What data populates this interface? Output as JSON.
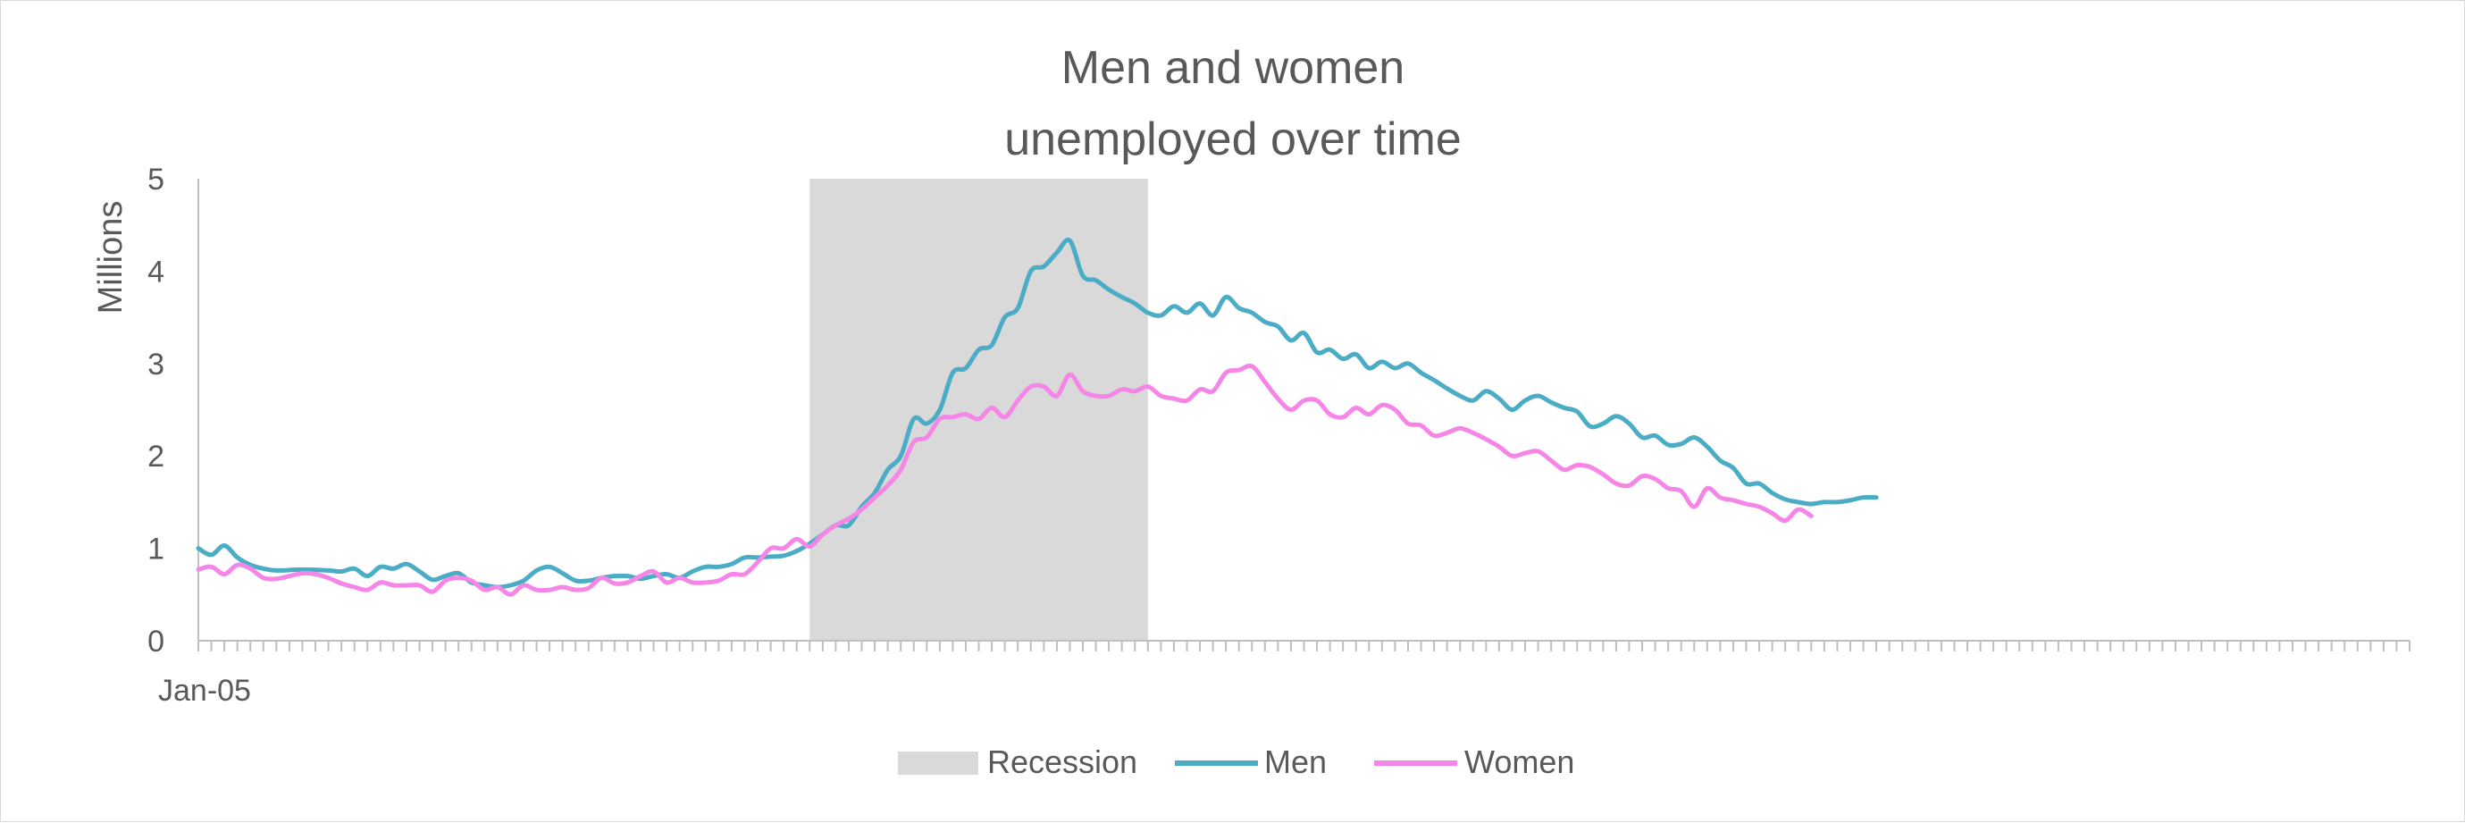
{
  "chart_data": {
    "type": "line",
    "title_lines": [
      "Men and women",
      "unemployed over time"
    ],
    "ylabel": "Millions",
    "ylim": [
      0,
      5
    ],
    "yticks": [
      0,
      1,
      2,
      3,
      4,
      5
    ],
    "x_start_label": "Jan-05",
    "x_range": [
      0,
      170
    ],
    "recession": {
      "name": "Recession",
      "start": 47,
      "end": 73,
      "color": "#d9d9d9"
    },
    "grid": false,
    "legend_position": "bottom",
    "series": [
      {
        "name": "Men",
        "color": "#4bacc6",
        "points": [
          [
            0,
            1.0
          ],
          [
            1,
            0.93
          ],
          [
            2,
            1.03
          ],
          [
            3,
            0.9
          ],
          [
            4,
            0.82
          ],
          [
            5,
            0.78
          ],
          [
            6,
            0.76
          ],
          [
            8,
            0.77
          ],
          [
            10,
            0.76
          ],
          [
            11,
            0.75
          ],
          [
            12,
            0.78
          ],
          [
            13,
            0.7
          ],
          [
            14,
            0.8
          ],
          [
            15,
            0.78
          ],
          [
            16,
            0.83
          ],
          [
            17,
            0.75
          ],
          [
            18,
            0.66
          ],
          [
            19,
            0.7
          ],
          [
            20,
            0.73
          ],
          [
            21,
            0.63
          ],
          [
            22,
            0.6
          ],
          [
            23,
            0.58
          ],
          [
            24,
            0.6
          ],
          [
            25,
            0.65
          ],
          [
            26,
            0.76
          ],
          [
            27,
            0.8
          ],
          [
            28,
            0.73
          ],
          [
            29,
            0.65
          ],
          [
            30,
            0.65
          ],
          [
            31,
            0.68
          ],
          [
            32,
            0.7
          ],
          [
            33,
            0.7
          ],
          [
            34,
            0.67
          ],
          [
            35,
            0.7
          ],
          [
            36,
            0.72
          ],
          [
            37,
            0.68
          ],
          [
            38,
            0.75
          ],
          [
            39,
            0.8
          ],
          [
            40,
            0.8
          ],
          [
            41,
            0.83
          ],
          [
            42,
            0.9
          ],
          [
            43,
            0.9
          ],
          [
            44,
            0.91
          ],
          [
            45,
            0.92
          ],
          [
            46,
            0.97
          ],
          [
            47,
            1.05
          ],
          [
            48,
            1.15
          ],
          [
            49,
            1.25
          ],
          [
            50,
            1.25
          ],
          [
            51,
            1.45
          ],
          [
            52,
            1.6
          ],
          [
            53,
            1.85
          ],
          [
            54,
            2.0
          ],
          [
            55,
            2.4
          ],
          [
            56,
            2.35
          ],
          [
            57,
            2.5
          ],
          [
            58,
            2.9
          ],
          [
            59,
            2.95
          ],
          [
            60,
            3.15
          ],
          [
            61,
            3.2
          ],
          [
            62,
            3.5
          ],
          [
            63,
            3.6
          ],
          [
            64,
            4.0
          ],
          [
            65,
            4.05
          ],
          [
            66,
            4.2
          ],
          [
            67,
            4.33
          ],
          [
            68,
            3.95
          ],
          [
            69,
            3.9
          ],
          [
            70,
            3.8
          ],
          [
            71,
            3.72
          ],
          [
            72,
            3.65
          ],
          [
            73,
            3.55
          ],
          [
            74,
            3.52
          ],
          [
            75,
            3.62
          ],
          [
            76,
            3.55
          ],
          [
            77,
            3.65
          ],
          [
            78,
            3.52
          ],
          [
            79,
            3.72
          ],
          [
            80,
            3.6
          ],
          [
            81,
            3.55
          ],
          [
            82,
            3.45
          ],
          [
            83,
            3.4
          ],
          [
            84,
            3.25
          ],
          [
            85,
            3.33
          ],
          [
            86,
            3.12
          ],
          [
            87,
            3.15
          ],
          [
            88,
            3.05
          ],
          [
            89,
            3.1
          ],
          [
            90,
            2.95
          ],
          [
            91,
            3.02
          ],
          [
            92,
            2.95
          ],
          [
            93,
            3.0
          ],
          [
            94,
            2.9
          ],
          [
            95,
            2.82
          ],
          [
            96,
            2.73
          ],
          [
            97,
            2.65
          ],
          [
            98,
            2.6
          ],
          [
            99,
            2.7
          ],
          [
            100,
            2.62
          ],
          [
            101,
            2.5
          ],
          [
            102,
            2.6
          ],
          [
            103,
            2.65
          ],
          [
            104,
            2.58
          ],
          [
            105,
            2.52
          ],
          [
            106,
            2.48
          ],
          [
            107,
            2.32
          ],
          [
            108,
            2.35
          ],
          [
            109,
            2.43
          ],
          [
            110,
            2.35
          ],
          [
            111,
            2.2
          ],
          [
            112,
            2.22
          ],
          [
            113,
            2.12
          ],
          [
            114,
            2.13
          ],
          [
            115,
            2.2
          ],
          [
            116,
            2.1
          ],
          [
            117,
            1.95
          ],
          [
            118,
            1.87
          ],
          [
            119,
            1.7
          ],
          [
            120,
            1.7
          ],
          [
            121,
            1.6
          ],
          [
            122,
            1.53
          ],
          [
            123,
            1.5
          ],
          [
            124,
            1.48
          ],
          [
            125,
            1.5
          ],
          [
            126,
            1.5
          ],
          [
            127,
            1.52
          ],
          [
            128,
            1.55
          ],
          [
            129,
            1.55
          ]
        ]
      },
      {
        "name": "Women",
        "color": "#f586e8",
        "points": [
          [
            0,
            0.77
          ],
          [
            1,
            0.8
          ],
          [
            2,
            0.72
          ],
          [
            3,
            0.82
          ],
          [
            4,
            0.78
          ],
          [
            5,
            0.68
          ],
          [
            6,
            0.67
          ],
          [
            7,
            0.7
          ],
          [
            8,
            0.73
          ],
          [
            9,
            0.72
          ],
          [
            10,
            0.68
          ],
          [
            11,
            0.62
          ],
          [
            12,
            0.58
          ],
          [
            13,
            0.55
          ],
          [
            14,
            0.63
          ],
          [
            15,
            0.6
          ],
          [
            16,
            0.6
          ],
          [
            17,
            0.6
          ],
          [
            18,
            0.53
          ],
          [
            19,
            0.65
          ],
          [
            20,
            0.68
          ],
          [
            21,
            0.65
          ],
          [
            22,
            0.55
          ],
          [
            23,
            0.58
          ],
          [
            24,
            0.5
          ],
          [
            25,
            0.6
          ],
          [
            26,
            0.55
          ],
          [
            27,
            0.55
          ],
          [
            28,
            0.58
          ],
          [
            29,
            0.55
          ],
          [
            30,
            0.57
          ],
          [
            31,
            0.68
          ],
          [
            32,
            0.62
          ],
          [
            33,
            0.63
          ],
          [
            34,
            0.7
          ],
          [
            35,
            0.75
          ],
          [
            36,
            0.63
          ],
          [
            37,
            0.68
          ],
          [
            38,
            0.63
          ],
          [
            39,
            0.63
          ],
          [
            40,
            0.65
          ],
          [
            41,
            0.72
          ],
          [
            42,
            0.72
          ],
          [
            43,
            0.85
          ],
          [
            44,
            1.0
          ],
          [
            45,
            1.0
          ],
          [
            46,
            1.1
          ],
          [
            47,
            1.02
          ],
          [
            48,
            1.15
          ],
          [
            49,
            1.25
          ],
          [
            50,
            1.32
          ],
          [
            51,
            1.42
          ],
          [
            52,
            1.55
          ],
          [
            53,
            1.68
          ],
          [
            54,
            1.85
          ],
          [
            55,
            2.15
          ],
          [
            56,
            2.2
          ],
          [
            57,
            2.4
          ],
          [
            58,
            2.42
          ],
          [
            59,
            2.45
          ],
          [
            60,
            2.4
          ],
          [
            61,
            2.52
          ],
          [
            62,
            2.42
          ],
          [
            63,
            2.6
          ],
          [
            64,
            2.75
          ],
          [
            65,
            2.75
          ],
          [
            66,
            2.65
          ],
          [
            67,
            2.88
          ],
          [
            68,
            2.7
          ],
          [
            69,
            2.65
          ],
          [
            70,
            2.65
          ],
          [
            71,
            2.72
          ],
          [
            72,
            2.7
          ],
          [
            73,
            2.75
          ],
          [
            74,
            2.65
          ],
          [
            75,
            2.62
          ],
          [
            76,
            2.6
          ],
          [
            77,
            2.72
          ],
          [
            78,
            2.7
          ],
          [
            79,
            2.9
          ],
          [
            80,
            2.93
          ],
          [
            81,
            2.97
          ],
          [
            82,
            2.8
          ],
          [
            83,
            2.62
          ],
          [
            84,
            2.5
          ],
          [
            85,
            2.6
          ],
          [
            86,
            2.6
          ],
          [
            87,
            2.45
          ],
          [
            88,
            2.42
          ],
          [
            89,
            2.52
          ],
          [
            90,
            2.45
          ],
          [
            91,
            2.55
          ],
          [
            92,
            2.5
          ],
          [
            93,
            2.35
          ],
          [
            94,
            2.33
          ],
          [
            95,
            2.22
          ],
          [
            96,
            2.25
          ],
          [
            97,
            2.3
          ],
          [
            98,
            2.25
          ],
          [
            99,
            2.18
          ],
          [
            100,
            2.1
          ],
          [
            101,
            2.0
          ],
          [
            102,
            2.03
          ],
          [
            103,
            2.05
          ],
          [
            104,
            1.95
          ],
          [
            105,
            1.85
          ],
          [
            106,
            1.9
          ],
          [
            107,
            1.88
          ],
          [
            108,
            1.8
          ],
          [
            109,
            1.7
          ],
          [
            110,
            1.68
          ],
          [
            111,
            1.78
          ],
          [
            112,
            1.75
          ],
          [
            113,
            1.65
          ],
          [
            114,
            1.62
          ],
          [
            115,
            1.45
          ],
          [
            116,
            1.65
          ],
          [
            117,
            1.55
          ],
          [
            118,
            1.52
          ],
          [
            119,
            1.48
          ],
          [
            120,
            1.45
          ],
          [
            121,
            1.38
          ],
          [
            122,
            1.3
          ],
          [
            123,
            1.42
          ],
          [
            124,
            1.35
          ]
        ]
      }
    ]
  }
}
